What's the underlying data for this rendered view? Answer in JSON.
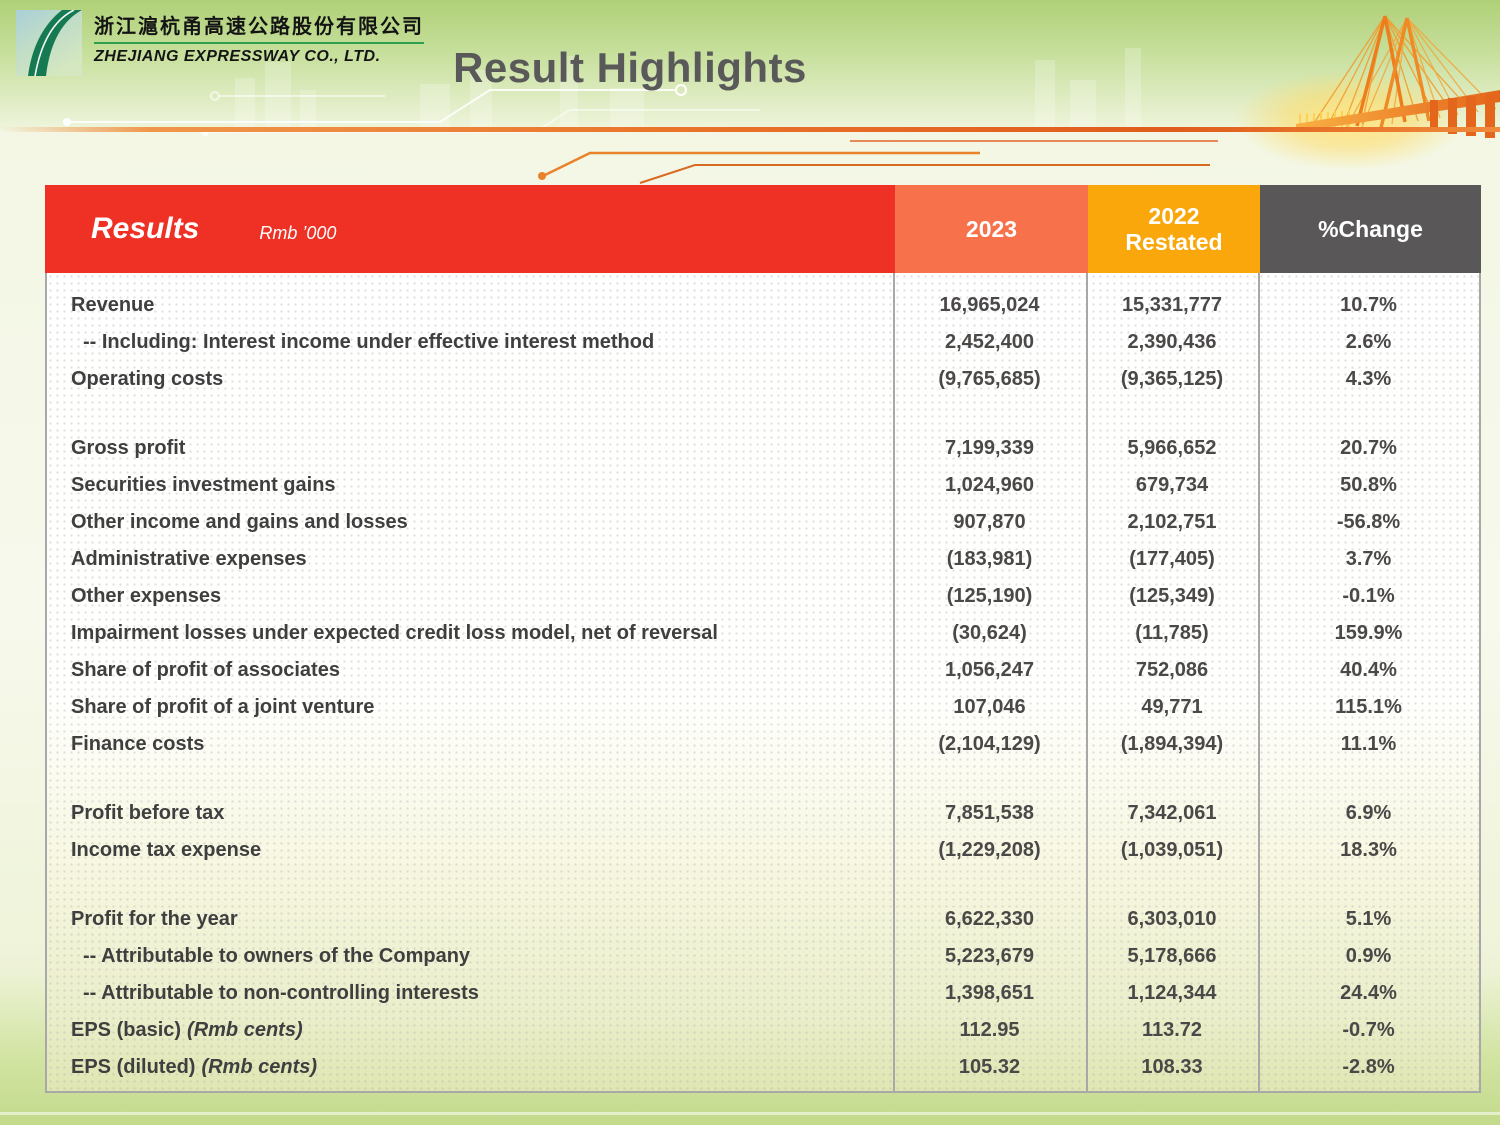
{
  "logo": {
    "company_cn": "浙江滬杭甬高速公路股份有限公司",
    "company_en": "ZHEJIANG EXPRESSWAY CO., LTD."
  },
  "title": "Result Highlights",
  "table": {
    "header": {
      "results_label": "Results",
      "unit_label": "Rmb ’000",
      "col_2023": "2023",
      "col_2022_line1": "2022",
      "col_2022_line2": "Restated",
      "col_change": "%Change"
    },
    "colors": {
      "header_red": "#ee3124",
      "header_orange": "#f7714a",
      "header_yellow": "#f9a70b",
      "header_gray": "#595757"
    },
    "rows": [
      {
        "label": "Revenue",
        "v2023": "16,965,024",
        "v2022": "15,331,777",
        "change": "10.7%"
      },
      {
        "label": "-- Including: Interest income under effective interest method",
        "indent": true,
        "v2023": "2,452,400",
        "v2022": "2,390,436",
        "change": "2.6%"
      },
      {
        "label": "Operating costs",
        "v2023": "(9,765,685)",
        "v2022": "(9,365,125)",
        "change": "4.3%"
      },
      {
        "spacer": true
      },
      {
        "label": "Gross profit",
        "v2023": "7,199,339",
        "v2022": "5,966,652",
        "change": "20.7%"
      },
      {
        "label": "Securities investment gains",
        "v2023": "1,024,960",
        "v2022": "679,734",
        "change": "50.8%"
      },
      {
        "label": "Other income and gains and losses",
        "v2023": "907,870",
        "v2022": "2,102,751",
        "change": "-56.8%"
      },
      {
        "label": "Administrative expenses",
        "v2023": "(183,981)",
        "v2022": "(177,405)",
        "change": "3.7%"
      },
      {
        "label": "Other expenses",
        "v2023": "(125,190)",
        "v2022": "(125,349)",
        "change": "-0.1%"
      },
      {
        "label": "Impairment losses under expected credit loss model, net of reversal",
        "v2023": "(30,624)",
        "v2022": "(11,785)",
        "change": "159.9%"
      },
      {
        "label": "Share of profit of associates",
        "v2023": "1,056,247",
        "v2022": "752,086",
        "change": "40.4%"
      },
      {
        "label": "Share of profit of a joint venture",
        "v2023": "107,046",
        "v2022": "49,771",
        "change": "115.1%"
      },
      {
        "label": "Finance costs",
        "v2023": "(2,104,129)",
        "v2022": "(1,894,394)",
        "change": "11.1%"
      },
      {
        "spacer": true
      },
      {
        "label": "Profit before tax",
        "v2023": "7,851,538",
        "v2022": "7,342,061",
        "change": "6.9%"
      },
      {
        "label": "Income tax expense",
        "v2023": "(1,229,208)",
        "v2022": "(1,039,051)",
        "change": "18.3%"
      },
      {
        "spacer": true
      },
      {
        "label": "Profit for the year",
        "v2023": "6,622,330",
        "v2022": "6,303,010",
        "change": "5.1%"
      },
      {
        "label": "-- Attributable to owners of the Company",
        "indent": true,
        "v2023": "5,223,679",
        "v2022": "5,178,666",
        "change": "0.9%"
      },
      {
        "label": "-- Attributable to non-controlling interests",
        "indent": true,
        "v2023": "1,398,651",
        "v2022": "1,124,344",
        "change": "24.4%"
      },
      {
        "label": "EPS (basic)",
        "note": "(Rmb cents)",
        "v2023": "112.95",
        "v2022": "113.72",
        "change": "-0.7%"
      },
      {
        "label": "EPS (diluted)",
        "note": "(Rmb cents)",
        "v2023": "105.32",
        "v2022": "108.33",
        "change": "-2.8%"
      }
    ]
  }
}
